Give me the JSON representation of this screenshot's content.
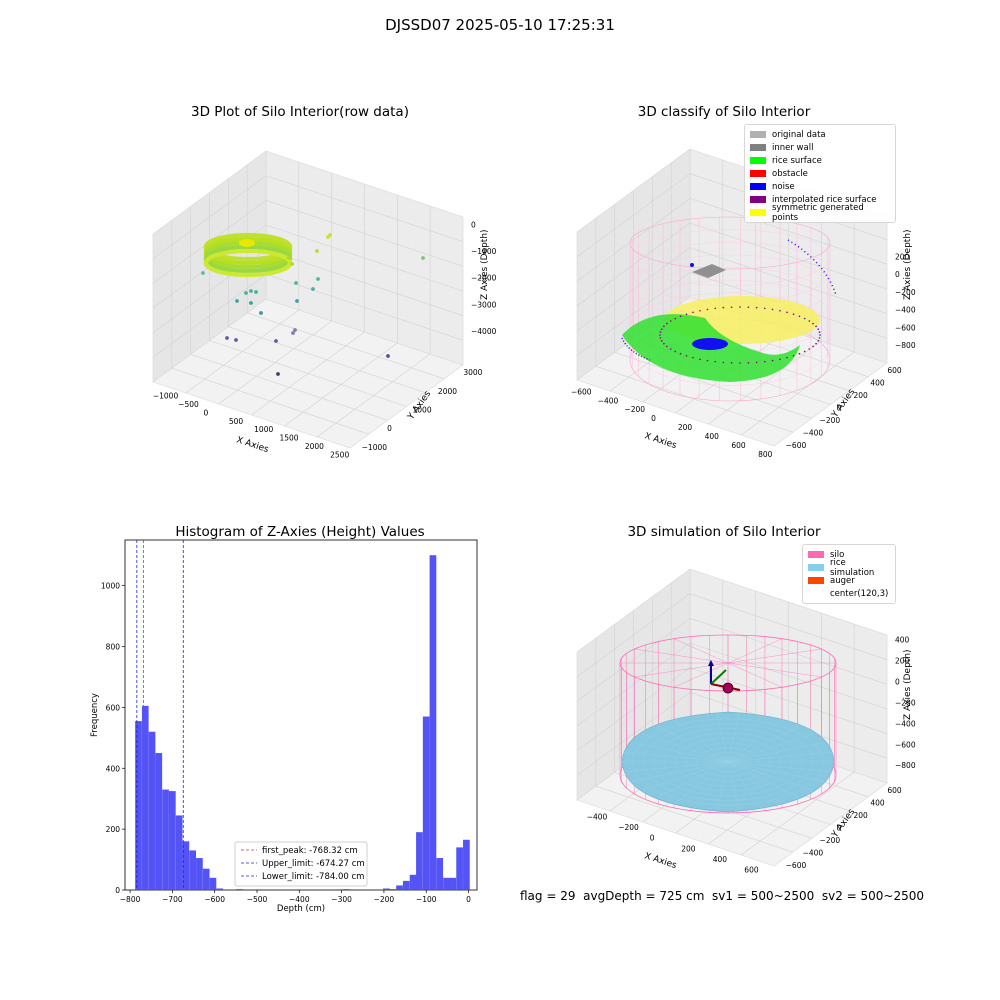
{
  "suptitle": "DJSSD07 2025-05-10 17:25:31",
  "status_line": "flag = 29  avgDepth = 725 cm  sv1 = 500~2500  sv2 = 500~2500",
  "colors": {
    "histogram": "#4b4bf5",
    "first_peak": "#e0304a",
    "limit_line": "#2020d0",
    "silo_wire": "#ff69b4",
    "rice_surface_sim": "#87c8e0"
  },
  "plot_raw": {
    "title": "3D Plot of Silo Interior(row data)",
    "xlabel": "X Axies",
    "ylabel": "Y Axies",
    "zlabel": "Z Axies (Depth)",
    "xticks": [
      "−1000",
      "−500",
      "0",
      "500",
      "1000",
      "1500",
      "2000",
      "2500"
    ],
    "yticks": [
      "−1000",
      "0",
      "1000",
      "2000",
      "3000"
    ],
    "zticks": [
      "0",
      "−1000",
      "−2000",
      "−3000",
      "−4000"
    ]
  },
  "plot_classify": {
    "title": "3D classify of Silo Interior",
    "xlabel": "X Axies",
    "ylabel": "Y Axies",
    "zlabel": "Z Axies (Depth)",
    "xticks": [
      "−600",
      "−400",
      "−200",
      "0",
      "200",
      "400",
      "600",
      "800"
    ],
    "yticks": [
      "−600",
      "−400",
      "−200",
      "0",
      "200",
      "400",
      "600"
    ],
    "zticks": [
      "200",
      "0",
      "−200",
      "−400",
      "−600",
      "−800"
    ],
    "legend": [
      {
        "label": "original data",
        "color": "#b0b0b0"
      },
      {
        "label": "inner wall",
        "color": "#808080"
      },
      {
        "label": "rice surface",
        "color": "#00ff00"
      },
      {
        "label": "obstacle",
        "color": "#ff0000"
      },
      {
        "label": "noise",
        "color": "#0000ff"
      },
      {
        "label": "interpolated rice surface",
        "color": "#800080"
      },
      {
        "label": "symmetric generated points",
        "color": "#ffff00"
      }
    ]
  },
  "plot_sim": {
    "title": "3D simulation of Silo Interior",
    "xlabel": "X Axies",
    "ylabel": "Y Axies",
    "zlabel": "Z Axies (Depth)",
    "xticks": [
      "−400",
      "−200",
      "0",
      "200",
      "400",
      "600"
    ],
    "yticks": [
      "−600",
      "−400",
      "−200",
      "0",
      "200",
      "400",
      "600"
    ],
    "zticks": [
      "400",
      "200",
      "0",
      "−200",
      "−400",
      "−600",
      "−800"
    ],
    "legend": [
      {
        "label": "silo",
        "color": "#ff69b4"
      },
      {
        "label": "rice simulation",
        "color": "#87ceeb"
      },
      {
        "label": "auger",
        "color": "#ff4500"
      },
      {
        "label": "center(120,3)",
        "color": ""
      }
    ]
  },
  "chart_data": {
    "type": "bar",
    "title": "Histogram of Z-Axies (Height) Values",
    "xlabel": "Depth (cm)",
    "ylabel": "Frequency",
    "xlim": [
      -812,
      20
    ],
    "ylim": [
      0,
      1150
    ],
    "xticks": [
      -800,
      -700,
      -600,
      -500,
      -400,
      -300,
      -200,
      -100,
      0
    ],
    "yticks": [
      0,
      200,
      400,
      600,
      800,
      1000
    ],
    "bin_width": 15.8,
    "bins": [
      {
        "x": -788,
        "value": 555
      },
      {
        "x": -772,
        "value": 605
      },
      {
        "x": -756,
        "value": 520
      },
      {
        "x": -740,
        "value": 450
      },
      {
        "x": -724,
        "value": 330
      },
      {
        "x": -708,
        "value": 325
      },
      {
        "x": -692,
        "value": 245
      },
      {
        "x": -676,
        "value": 160
      },
      {
        "x": -660,
        "value": 130
      },
      {
        "x": -644,
        "value": 105
      },
      {
        "x": -628,
        "value": 70
      },
      {
        "x": -612,
        "value": 40
      },
      {
        "x": -596,
        "value": 5
      },
      {
        "x": -549,
        "value": 3
      },
      {
        "x": -297,
        "value": 3
      },
      {
        "x": -202,
        "value": 5
      },
      {
        "x": -187,
        "value": 3
      },
      {
        "x": -171,
        "value": 15
      },
      {
        "x": -155,
        "value": 30
      },
      {
        "x": -139,
        "value": 50
      },
      {
        "x": -124,
        "value": 190
      },
      {
        "x": -108,
        "value": 570
      },
      {
        "x": -92,
        "value": 1100
      },
      {
        "x": -76,
        "value": 105
      },
      {
        "x": -60,
        "value": 40
      },
      {
        "x": -45,
        "value": 40
      },
      {
        "x": -29,
        "value": 140
      },
      {
        "x": -13,
        "value": 165
      }
    ],
    "vlines": [
      {
        "name": "first_peak: -768.32 cm",
        "x": -768.32,
        "color": "#e0304a"
      },
      {
        "name": "Upper_limit: -674.27 cm",
        "x": -674.27,
        "color": "#2020d0"
      },
      {
        "name": "Lower_limit: -784.00 cm",
        "x": -784.0,
        "color": "#2020d0"
      }
    ],
    "legend_position": "lower-center"
  }
}
